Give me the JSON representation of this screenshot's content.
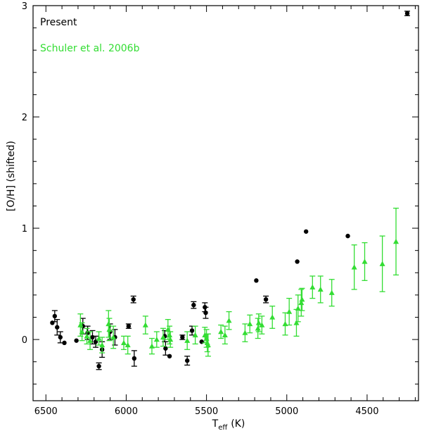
{
  "chart_data": {
    "type": "scatter",
    "xlabel": "T",
    "xlabel_sub": "eff",
    "xlabel_unit": "(K)",
    "ylabel": "[O/H] (shifted)",
    "xlim": [
      6580,
      4180
    ],
    "ylim": [
      -0.55,
      3.0
    ],
    "x_reversed": true,
    "grid": false,
    "legend_position": "top-left",
    "x_ticks": [
      {
        "value": 6500,
        "label": "6500"
      },
      {
        "value": 6000,
        "label": "6000"
      },
      {
        "value": 5500,
        "label": "5500"
      },
      {
        "value": 5000,
        "label": "5000"
      },
      {
        "value": 4500,
        "label": "4500"
      }
    ],
    "y_ticks": [
      {
        "value": 0,
        "label": "0"
      },
      {
        "value": 1,
        "label": "1"
      },
      {
        "value": 2,
        "label": "2"
      },
      {
        "value": 3,
        "label": "3"
      }
    ],
    "series": [
      {
        "name": "Present",
        "marker": "circle",
        "color": "#000000",
        "points": [
          {
            "x": 6460,
            "y": 0.15,
            "err": 0.0
          },
          {
            "x": 6445,
            "y": 0.21,
            "err": 0.05
          },
          {
            "x": 6430,
            "y": 0.11,
            "err": 0.07
          },
          {
            "x": 6410,
            "y": 0.02,
            "err": 0.05
          },
          {
            "x": 6385,
            "y": -0.03,
            "err": 0.0
          },
          {
            "x": 6310,
            "y": -0.01,
            "err": 0.0
          },
          {
            "x": 6270,
            "y": 0.12,
            "err": 0.07
          },
          {
            "x": 6240,
            "y": 0.06,
            "err": 0.06
          },
          {
            "x": 6210,
            "y": 0.02,
            "err": 0.06
          },
          {
            "x": 6190,
            "y": -0.02,
            "err": 0.05
          },
          {
            "x": 6170,
            "y": -0.24,
            "err": 0.03
          },
          {
            "x": 6150,
            "y": -0.09,
            "err": 0.07
          },
          {
            "x": 6100,
            "y": 0.07,
            "err": 0.07
          },
          {
            "x": 6070,
            "y": 0.02,
            "err": 0.07
          },
          {
            "x": 5985,
            "y": 0.12,
            "err": 0.02
          },
          {
            "x": 5955,
            "y": 0.36,
            "err": 0.03
          },
          {
            "x": 5950,
            "y": -0.17,
            "err": 0.07
          },
          {
            "x": 5760,
            "y": 0.03,
            "err": 0.05
          },
          {
            "x": 5755,
            "y": -0.08,
            "err": 0.06
          },
          {
            "x": 5730,
            "y": -0.15,
            "err": 0.0
          },
          {
            "x": 5650,
            "y": 0.02,
            "err": 0.02
          },
          {
            "x": 5620,
            "y": -0.19,
            "err": 0.04
          },
          {
            "x": 5590,
            "y": 0.08,
            "err": 0.04
          },
          {
            "x": 5580,
            "y": 0.31,
            "err": 0.03
          },
          {
            "x": 5530,
            "y": -0.02,
            "err": 0.0
          },
          {
            "x": 5510,
            "y": 0.29,
            "err": 0.04
          },
          {
            "x": 5505,
            "y": 0.24,
            "err": 0.05
          },
          {
            "x": 5190,
            "y": 0.53,
            "err": 0.0
          },
          {
            "x": 5130,
            "y": 0.36,
            "err": 0.03
          },
          {
            "x": 4935,
            "y": 0.7,
            "err": 0.0
          },
          {
            "x": 4880,
            "y": 0.97,
            "err": 0.0
          },
          {
            "x": 4620,
            "y": 0.93,
            "err": 0.0
          },
          {
            "x": 4250,
            "y": 2.93,
            "err": 0.02
          }
        ]
      },
      {
        "name": "Schuler et al. 2006b",
        "marker": "triangle",
        "color": "#33dd33",
        "points": [
          {
            "x": 6285,
            "y": 0.13,
            "err": 0.1
          },
          {
            "x": 6275,
            "y": 0.07,
            "err": 0.08
          },
          {
            "x": 6245,
            "y": 0.03,
            "err": 0.07
          },
          {
            "x": 6225,
            "y": -0.01,
            "err": 0.08
          },
          {
            "x": 6170,
            "y": 0.01,
            "err": 0.06
          },
          {
            "x": 6150,
            "y": -0.05,
            "err": 0.07
          },
          {
            "x": 6110,
            "y": 0.14,
            "err": 0.12
          },
          {
            "x": 6105,
            "y": 0.09,
            "err": 0.1
          },
          {
            "x": 6080,
            "y": 0.02,
            "err": 0.1
          },
          {
            "x": 6015,
            "y": -0.03,
            "err": 0.06
          },
          {
            "x": 5990,
            "y": -0.05,
            "err": 0.08
          },
          {
            "x": 5880,
            "y": 0.13,
            "err": 0.08
          },
          {
            "x": 5840,
            "y": -0.06,
            "err": 0.07
          },
          {
            "x": 5810,
            "y": 0.0,
            "err": 0.07
          },
          {
            "x": 5770,
            "y": 0.02,
            "err": 0.08
          },
          {
            "x": 5740,
            "y": 0.09,
            "err": 0.09
          },
          {
            "x": 5730,
            "y": 0.04,
            "err": 0.08
          },
          {
            "x": 5725,
            "y": 0.0,
            "err": 0.07
          },
          {
            "x": 5620,
            "y": -0.01,
            "err": 0.08
          },
          {
            "x": 5570,
            "y": 0.04,
            "err": 0.08
          },
          {
            "x": 5510,
            "y": 0.04,
            "err": 0.07
          },
          {
            "x": 5500,
            "y": 0.01,
            "err": 0.08
          },
          {
            "x": 5495,
            "y": -0.03,
            "err": 0.08
          },
          {
            "x": 5490,
            "y": -0.05,
            "err": 0.1
          },
          {
            "x": 5410,
            "y": 0.07,
            "err": 0.06
          },
          {
            "x": 5385,
            "y": 0.04,
            "err": 0.08
          },
          {
            "x": 5360,
            "y": 0.17,
            "err": 0.08
          },
          {
            "x": 5260,
            "y": 0.06,
            "err": 0.08
          },
          {
            "x": 5230,
            "y": 0.14,
            "err": 0.08
          },
          {
            "x": 5180,
            "y": 0.1,
            "err": 0.09
          },
          {
            "x": 5175,
            "y": 0.15,
            "err": 0.08
          },
          {
            "x": 5155,
            "y": 0.13,
            "err": 0.08
          },
          {
            "x": 5090,
            "y": 0.2,
            "err": 0.1
          },
          {
            "x": 5010,
            "y": 0.14,
            "err": 0.1
          },
          {
            "x": 4985,
            "y": 0.25,
            "err": 0.12
          },
          {
            "x": 4940,
            "y": 0.15,
            "err": 0.12
          },
          {
            "x": 4930,
            "y": 0.28,
            "err": 0.12
          },
          {
            "x": 4910,
            "y": 0.33,
            "err": 0.12
          },
          {
            "x": 4905,
            "y": 0.36,
            "err": 0.1
          },
          {
            "x": 4840,
            "y": 0.47,
            "err": 0.1
          },
          {
            "x": 4790,
            "y": 0.45,
            "err": 0.12
          },
          {
            "x": 4720,
            "y": 0.42,
            "err": 0.12
          },
          {
            "x": 4580,
            "y": 0.65,
            "err": 0.2
          },
          {
            "x": 4515,
            "y": 0.7,
            "err": 0.17
          },
          {
            "x": 4405,
            "y": 0.68,
            "err": 0.25
          },
          {
            "x": 4320,
            "y": 0.88,
            "err": 0.3
          }
        ]
      }
    ]
  }
}
